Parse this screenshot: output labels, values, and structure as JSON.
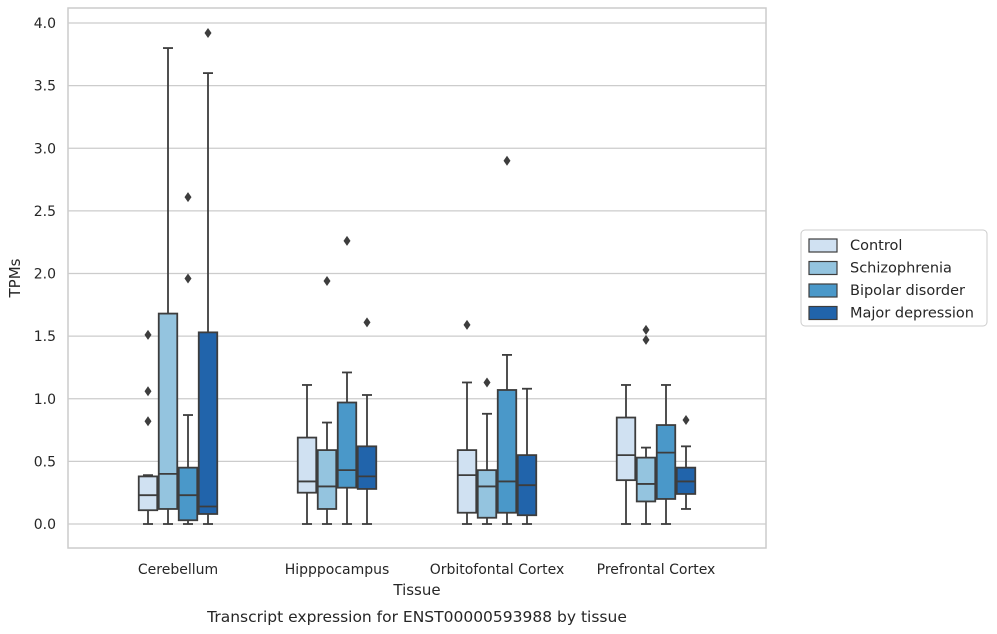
{
  "chart_data": {
    "type": "box",
    "caption": "Transcript expression for ENST00000593988 by tissue",
    "xlabel": "Tissue",
    "ylabel": "TPMs",
    "ylim": [
      -0.18,
      4.1
    ],
    "yticks": [
      "0.0",
      "0.5",
      "1.0",
      "1.5",
      "2.0",
      "2.5",
      "3.0",
      "3.5",
      "4.0"
    ],
    "ytick_values": [
      0,
      0.5,
      1.0,
      1.5,
      2.0,
      2.5,
      3.0,
      3.5,
      4.0
    ],
    "grid": true,
    "legend_position": "right",
    "categories": [
      "Cerebellum",
      "Hipppocampus",
      "Orbitofontal Cortex",
      "Prefrontal Cortex"
    ],
    "series": [
      {
        "name": "Control",
        "color": "#d0e1f2",
        "boxes": [
          {
            "whislo": 0.0,
            "q1": 0.11,
            "med": 0.23,
            "q3": 0.38,
            "whishi": 0.39,
            "fliers": [
              0.82,
              1.06,
              1.51
            ]
          },
          {
            "whislo": 0.0,
            "q1": 0.25,
            "med": 0.34,
            "q3": 0.69,
            "whishi": 1.11,
            "fliers": []
          },
          {
            "whislo": 0.0,
            "q1": 0.09,
            "med": 0.39,
            "q3": 0.59,
            "whishi": 1.13,
            "fliers": [
              1.59
            ]
          },
          {
            "whislo": 0.0,
            "q1": 0.35,
            "med": 0.55,
            "q3": 0.85,
            "whishi": 1.11,
            "fliers": []
          }
        ]
      },
      {
        "name": "Schizophrenia",
        "color": "#94c4df",
        "boxes": [
          {
            "whislo": 0.0,
            "q1": 0.12,
            "med": 0.4,
            "q3": 1.68,
            "whishi": 3.8,
            "fliers": []
          },
          {
            "whislo": 0.0,
            "q1": 0.12,
            "med": 0.3,
            "q3": 0.59,
            "whishi": 0.81,
            "fliers": [
              1.94
            ]
          },
          {
            "whislo": 0.0,
            "q1": 0.05,
            "med": 0.3,
            "q3": 0.43,
            "whishi": 0.88,
            "fliers": [
              1.13
            ]
          },
          {
            "whislo": 0.0,
            "q1": 0.18,
            "med": 0.32,
            "q3": 0.53,
            "whishi": 0.61,
            "fliers": [
              1.47,
              1.55
            ]
          }
        ]
      },
      {
        "name": "Bipolar disorder",
        "color": "#4a98c9",
        "boxes": [
          {
            "whislo": 0.0,
            "q1": 0.03,
            "med": 0.23,
            "q3": 0.45,
            "whishi": 0.87,
            "fliers": [
              1.96,
              2.61
            ]
          },
          {
            "whislo": 0.0,
            "q1": 0.29,
            "med": 0.43,
            "q3": 0.97,
            "whishi": 1.21,
            "fliers": [
              2.26
            ]
          },
          {
            "whislo": 0.0,
            "q1": 0.09,
            "med": 0.34,
            "q3": 1.07,
            "whishi": 1.35,
            "fliers": [
              2.9
            ]
          },
          {
            "whislo": 0.0,
            "q1": 0.2,
            "med": 0.57,
            "q3": 0.79,
            "whishi": 1.11,
            "fliers": []
          }
        ]
      },
      {
        "name": "Major depression",
        "color": "#2164ab",
        "boxes": [
          {
            "whislo": 0.0,
            "q1": 0.08,
            "med": 0.14,
            "q3": 1.53,
            "whishi": 3.6,
            "fliers": [
              3.92
            ]
          },
          {
            "whislo": 0.0,
            "q1": 0.28,
            "med": 0.38,
            "q3": 0.62,
            "whishi": 1.03,
            "fliers": [
              1.61
            ]
          },
          {
            "whislo": 0.0,
            "q1": 0.07,
            "med": 0.31,
            "q3": 0.55,
            "whishi": 1.08,
            "fliers": []
          },
          {
            "whislo": 0.12,
            "q1": 0.24,
            "med": 0.34,
            "q3": 0.45,
            "whishi": 0.62,
            "fliers": [
              0.83
            ]
          }
        ]
      }
    ]
  }
}
